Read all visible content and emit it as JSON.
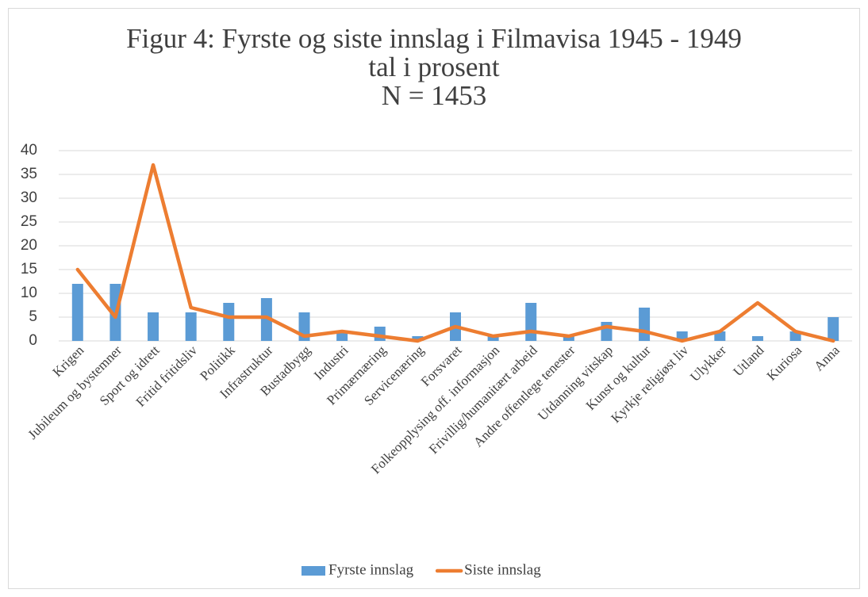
{
  "chart_data": {
    "type": "bar_line",
    "title": [
      "Figur 4: Fyrste og siste innslag i Filmavisa 1945 - 1949",
      "tal i prosent",
      "N = 1453"
    ],
    "categories": [
      "Krigen",
      "Jubileum og bystemner",
      "Sport og idrett",
      "Fritid fritidsliv",
      "Politikk",
      "Infrastruktur",
      "Bustadbygg",
      "Industri",
      "Primærnæring",
      "Servicenæring",
      "Forsvaret",
      "Folkeopplysing off. informasjon",
      "Frivillig/humanitært arbeid",
      "Andre offentlege tenester",
      "Utdanning vitskap",
      "Kunst og kultur",
      "Kyrkje religiøst liv",
      "Ulykker",
      "Utland",
      "Kuriosa",
      "Anna"
    ],
    "series": [
      {
        "name": "Fyrste innslag",
        "type": "bar",
        "color": "#5b9bd5",
        "values": [
          12,
          12,
          6,
          6,
          8,
          9,
          6,
          2,
          3,
          1,
          6,
          1,
          8,
          1,
          4,
          7,
          2,
          2,
          1,
          2,
          5
        ]
      },
      {
        "name": "Siste innslag",
        "type": "line",
        "color": "#ed7d31",
        "values": [
          15,
          5,
          37,
          7,
          5,
          5,
          1,
          2,
          1,
          0,
          3,
          1,
          2,
          1,
          3,
          2,
          0,
          2,
          8,
          2,
          0
        ]
      }
    ],
    "ylim": [
      0,
      40
    ],
    "yticks": [
      0,
      5,
      10,
      15,
      20,
      25,
      30,
      35,
      40
    ],
    "grid": true,
    "legend": "bottom"
  }
}
